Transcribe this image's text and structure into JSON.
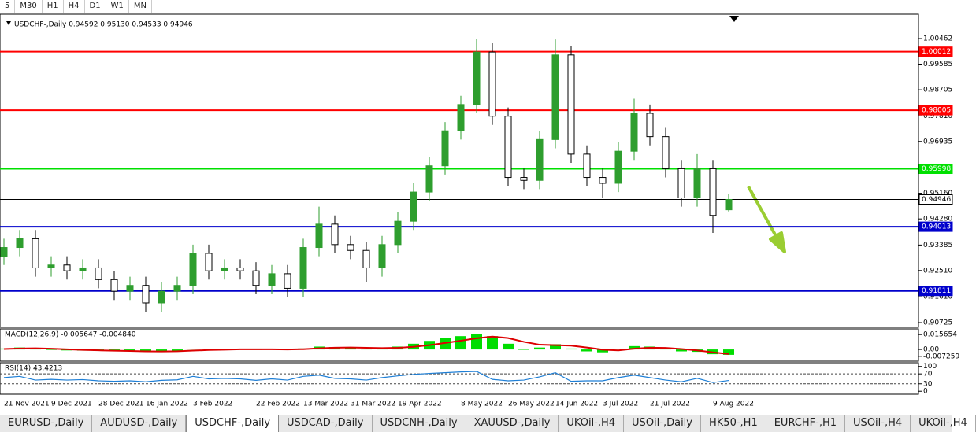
{
  "toolbar": [
    "5",
    "M30",
    "H1",
    "H4",
    "D1",
    "W1",
    "MN"
  ],
  "tabs": [
    "EURUSD-,Daily",
    "AUDUSD-,Daily",
    "USDCHF-,Daily",
    "USDCAD-,Daily",
    "USDCNH-,Daily",
    "XAUUSD-,Daily",
    "UKOil-,H4",
    "USOil-,Daily",
    "HK50-,H1",
    "EURCHF-,H1",
    "USOil-,H4",
    "UKOil-,H4"
  ],
  "active_tab": 2,
  "chart_data": [
    {
      "type": "candlestick",
      "title": "USDCHF-,Daily  0.94592 0.95130 0.94533 0.94946",
      "categories": [
        "21 Nov 2021",
        null,
        null,
        "9 Dec 2021",
        null,
        null,
        "28 Dec 2021",
        null,
        null,
        "16 Jan 2022",
        null,
        null,
        "3 Feb 2022",
        null,
        null,
        null,
        "22 Feb 2022",
        null,
        null,
        "13 Mar 2022",
        null,
        null,
        "31 Mar 2022",
        null,
        null,
        "19 Apr 2022",
        null,
        null,
        null,
        "8 May 2022",
        null,
        null,
        "26 May 2022",
        null,
        null,
        "14 Jun 2022",
        null,
        null,
        "3 Jul 2022",
        null,
        null,
        "21 Jul 2022",
        null,
        null,
        null,
        "9 Aug 2022",
        null
      ],
      "open": [
        0.93,
        0.933,
        0.936,
        0.926,
        0.927,
        0.925,
        0.926,
        0.922,
        0.918,
        0.92,
        0.914,
        0.918,
        0.92,
        0.931,
        0.925,
        0.926,
        0.925,
        0.92,
        0.924,
        0.919,
        0.933,
        0.941,
        0.934,
        0.932,
        0.926,
        0.934,
        0.942,
        0.952,
        0.961,
        0.973,
        0.982,
        1.0,
        0.978,
        0.957,
        0.956,
        0.97,
        0.999,
        0.965,
        0.957,
        0.955,
        0.966,
        0.979,
        0.971,
        0.96,
        0.95,
        0.96,
        0.94592
      ],
      "high": [
        0.936,
        0.939,
        0.939,
        0.93,
        0.93,
        0.929,
        0.929,
        0.925,
        0.923,
        0.923,
        0.921,
        0.923,
        0.934,
        0.934,
        0.929,
        0.929,
        0.928,
        0.927,
        0.927,
        0.936,
        0.947,
        0.944,
        0.937,
        0.935,
        0.937,
        0.945,
        0.955,
        0.964,
        0.976,
        0.985,
        1.0046,
        1.003,
        0.981,
        0.96,
        0.973,
        1.0043,
        1.002,
        0.968,
        0.96,
        0.969,
        0.984,
        0.982,
        0.974,
        0.963,
        0.965,
        0.963,
        0.9513
      ],
      "low": [
        0.927,
        0.93,
        0.923,
        0.923,
        0.922,
        0.922,
        0.919,
        0.915,
        0.915,
        0.911,
        0.911,
        0.915,
        0.917,
        0.922,
        0.922,
        0.922,
        0.917,
        0.917,
        0.916,
        0.916,
        0.93,
        0.931,
        0.929,
        0.921,
        0.923,
        0.931,
        0.939,
        0.949,
        0.958,
        0.97,
        0.979,
        0.975,
        0.954,
        0.953,
        0.953,
        0.967,
        0.962,
        0.954,
        0.95,
        0.952,
        0.963,
        0.968,
        0.957,
        0.947,
        0.947,
        0.938,
        0.94533
      ],
      "close": [
        0.933,
        0.936,
        0.926,
        0.927,
        0.925,
        0.926,
        0.922,
        0.918,
        0.92,
        0.914,
        0.918,
        0.92,
        0.931,
        0.925,
        0.926,
        0.925,
        0.92,
        0.924,
        0.919,
        0.933,
        0.941,
        0.934,
        0.932,
        0.926,
        0.934,
        0.942,
        0.952,
        0.961,
        0.973,
        0.982,
        1.0,
        0.978,
        0.957,
        0.956,
        0.97,
        0.999,
        0.965,
        0.957,
        0.955,
        0.966,
        0.979,
        0.971,
        0.96,
        0.95,
        0.96,
        0.944,
        0.94946
      ],
      "up_color": "#2e9e2e",
      "down_color": "#000000",
      "ylim": [
        0.9059,
        1.01244
      ],
      "yticks": [
        1.00462,
        0.99585,
        0.98705,
        {
          "value": 0.9781,
          "label": "0.97810"
        },
        0.96935,
        {
          "value": 0.9516,
          "label": "0.95160"
        },
        {
          "value": 0.9428,
          "label": "0.94280"
        },
        0.93385,
        {
          "value": 0.9251,
          "label": "0.92510"
        },
        {
          "value": 0.9161,
          "label": "0.91610"
        },
        0.90725
      ],
      "levels": [
        {
          "value": 1.00012,
          "color": "#ff0000"
        },
        {
          "value": 0.98005,
          "color": "#ff0000"
        },
        {
          "value": 0.95998,
          "color": "#00e000"
        },
        {
          "value": 0.94946,
          "color": "#000000"
        },
        {
          "value": 0.94013,
          "color": "#0000cc"
        },
        {
          "value": 0.91811,
          "color": "#0000cc"
        }
      ]
    },
    {
      "type": "macd",
      "title": "MACD(12,26,9) -0.005647 -0.004840",
      "values": [
        0.001,
        0.002,
        0.0005,
        -0.0005,
        -0.001,
        -0.0012,
        -0.0015,
        -0.002,
        -0.002,
        -0.0025,
        -0.002,
        -0.0015,
        0.0005,
        0.0005,
        0.0008,
        0.0006,
        0.0,
        0.0002,
        -0.0005,
        0.001,
        0.003,
        0.0025,
        0.002,
        0.0008,
        0.001,
        0.003,
        0.006,
        0.009,
        0.012,
        0.014,
        0.0165,
        0.014,
        0.006,
        0.0,
        0.002,
        0.0055,
        0.001,
        -0.002,
        -0.003,
        0.0005,
        0.0035,
        0.003,
        0.0005,
        -0.002,
        -0.0025,
        -0.005,
        -0.005647
      ],
      "signal": [
        0.0005,
        0.001,
        0.0012,
        0.0008,
        0.0002,
        -0.0004,
        -0.0009,
        -0.0013,
        -0.0016,
        -0.002,
        -0.0021,
        -0.0019,
        -0.0012,
        -0.0006,
        -0.0002,
        0.0002,
        0.0002,
        0.0002,
        0.0,
        0.0003,
        0.0012,
        0.0018,
        0.002,
        0.0017,
        0.0014,
        0.0017,
        0.0028,
        0.0045,
        0.0068,
        0.0092,
        0.0118,
        0.0135,
        0.012,
        0.008,
        0.005,
        0.0045,
        0.004,
        0.002,
        -0.0002,
        -0.001,
        0.0008,
        0.0018,
        0.0016,
        0.0005,
        -0.001,
        -0.003,
        -0.00484
      ],
      "bar_color": "#00dd00",
      "signal_color": "#dd0000",
      "ylim": [
        -0.01235,
        0.0216
      ],
      "yticks": [
        0.015654,
        {
          "value": 0,
          "label": "0.00"
        },
        -0.007259
      ]
    },
    {
      "type": "rsi",
      "title": "RSI(14) 43.4213",
      "values": [
        55,
        60,
        45,
        48,
        45,
        47,
        42,
        40,
        42,
        38,
        44,
        46,
        60,
        50,
        52,
        50,
        44,
        50,
        45,
        60,
        65,
        52,
        50,
        45,
        55,
        62,
        68,
        72,
        75,
        78,
        80,
        48,
        42,
        45,
        58,
        75,
        40,
        42,
        42,
        55,
        65,
        55,
        45,
        38,
        52,
        35,
        43.4213
      ],
      "color": "#1e7fd6",
      "ylim": [
        -12,
        115
      ],
      "yticks": [
        100,
        70,
        30,
        0
      ],
      "levels": [
        70,
        30
      ]
    }
  ]
}
